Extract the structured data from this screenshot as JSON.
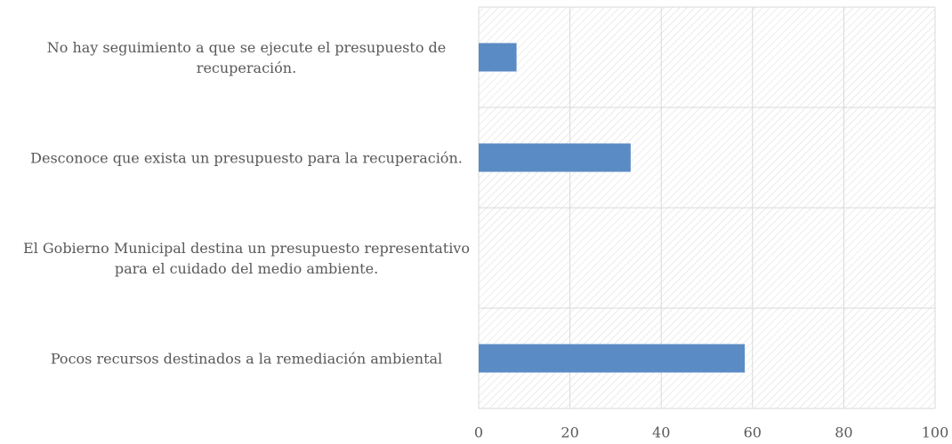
{
  "chart_data": {
    "type": "bar",
    "orientation": "horizontal",
    "categories": [
      "No hay seguimiento a que se ejecute el presupuesto de recuperación.",
      "Desconoce que exista un presupuesto para la recuperación.",
      "El Gobierno Municipal destina un presupuesto representativo para el cuidado del medio ambiente.",
      "Pocos recursos destinados a la remediación ambiental"
    ],
    "values": [
      8.3,
      33.3,
      0,
      58.3
    ],
    "color": "#5b8bc5",
    "xlim": [
      0,
      100
    ],
    "xticks": [
      0,
      20,
      40,
      60,
      80,
      100
    ],
    "grid": true
  }
}
